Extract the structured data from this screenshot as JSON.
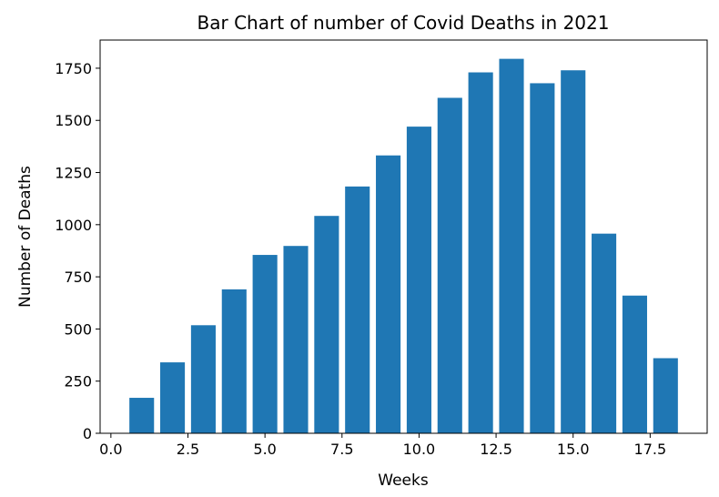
{
  "chart_data": {
    "type": "bar",
    "title": "Bar Chart of number of Covid Deaths in 2021",
    "xlabel": "Weeks",
    "ylabel": "Number of Deaths",
    "x": [
      1,
      2,
      3,
      4,
      5,
      6,
      7,
      8,
      9,
      10,
      11,
      12,
      13,
      14,
      15,
      16,
      17,
      18
    ],
    "values": [
      170,
      340,
      518,
      690,
      855,
      898,
      1042,
      1183,
      1332,
      1470,
      1608,
      1730,
      1795,
      1678,
      1740,
      957,
      660,
      360
    ],
    "xlim": [
      -0.35,
      19.35
    ],
    "ylim": [
      0,
      1885
    ],
    "xticks": [
      0.0,
      2.5,
      5.0,
      7.5,
      10.0,
      12.5,
      15.0,
      17.5
    ],
    "xtick_labels": [
      "0.0",
      "2.5",
      "5.0",
      "7.5",
      "10.0",
      "12.5",
      "15.0",
      "17.5"
    ],
    "yticks": [
      0,
      250,
      500,
      750,
      1000,
      1250,
      1500,
      1750
    ],
    "ytick_labels": [
      "0",
      "250",
      "500",
      "750",
      "1000",
      "1250",
      "1500",
      "1750"
    ],
    "bar_width": 0.8,
    "bar_color": "#1f77b4",
    "grid": false,
    "legend": false
  }
}
